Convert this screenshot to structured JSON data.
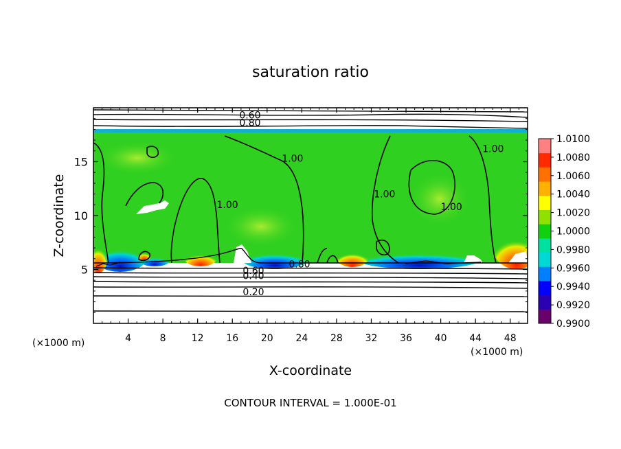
{
  "chart_data": {
    "type": "heatmap",
    "title": "saturation ratio",
    "xlabel": "X-coordinate",
    "ylabel": "Z-coordinate",
    "x_unit_left": "(×1000 m)",
    "x_unit_right": "(×1000 m)",
    "footer": "CONTOUR INTERVAL = 1.000E-01",
    "xlim": [
      0,
      50
    ],
    "ylim": [
      0,
      20
    ],
    "x_ticks": [
      4,
      8,
      12,
      16,
      20,
      24,
      28,
      32,
      36,
      40,
      44,
      48
    ],
    "y_ticks": [
      5,
      10,
      15
    ],
    "colorbar": {
      "min": 0.99,
      "max": 1.01,
      "labels": [
        "1.0100",
        "1.0080",
        "1.0060",
        "1.0040",
        "1.0020",
        "1.0000",
        "0.9980",
        "0.9960",
        "0.9940",
        "0.9920",
        "0.9900"
      ],
      "colors": [
        "#6a006a",
        "#2a00b0",
        "#0000ff",
        "#0080ff",
        "#00d8d8",
        "#00e0a0",
        "#10d010",
        "#90e000",
        "#ffff00",
        "#ffb000",
        "#ff7000",
        "#ff2a00",
        "#ff8080"
      ]
    },
    "contour_labels": [
      {
        "text": "0.60",
        "x": 16.8,
        "y": 19.0
      },
      {
        "text": "0.80",
        "x": 16.8,
        "y": 18.3
      },
      {
        "text": "1.00",
        "x": 21.7,
        "y": 15.0
      },
      {
        "text": "1.00",
        "x": 14.2,
        "y": 10.7
      },
      {
        "text": "1.00",
        "x": 32.3,
        "y": 11.7
      },
      {
        "text": "1.00",
        "x": 40.0,
        "y": 10.5
      },
      {
        "text": "1.00",
        "x": 44.8,
        "y": 15.9
      },
      {
        "text": "0.80",
        "x": 22.5,
        "y": 5.2
      },
      {
        "text": "0.60",
        "x": 17.2,
        "y": 4.6
      },
      {
        "text": "0.40",
        "x": 17.2,
        "y": 4.1
      },
      {
        "text": "0.20",
        "x": 17.2,
        "y": 2.6
      }
    ]
  }
}
